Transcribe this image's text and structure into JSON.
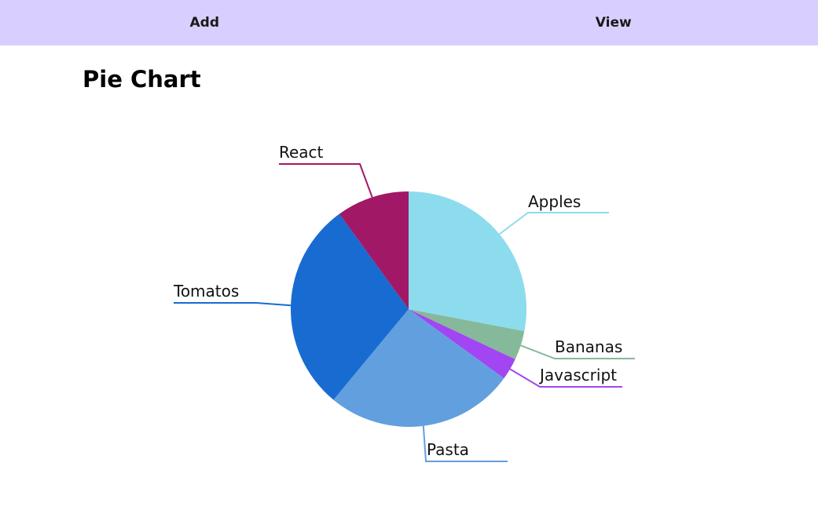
{
  "nav": {
    "items": [
      {
        "label": "Add"
      },
      {
        "label": "View"
      }
    ]
  },
  "page": {
    "title": "Pie Chart"
  },
  "chart_data": {
    "type": "pie",
    "title": "",
    "slices": [
      {
        "label": "Apples",
        "value": 28,
        "color": "#8cdcee"
      },
      {
        "label": "Bananas",
        "value": 4,
        "color": "#86b99a"
      },
      {
        "label": "Javascript",
        "value": 3,
        "color": "#a146f2"
      },
      {
        "label": "Pasta",
        "value": 26,
        "color": "#629fdf"
      },
      {
        "label": "Tomatos",
        "value": 29,
        "color": "#186bd1"
      },
      {
        "label": "React",
        "value": 10,
        "color": "#a11966"
      }
    ]
  }
}
